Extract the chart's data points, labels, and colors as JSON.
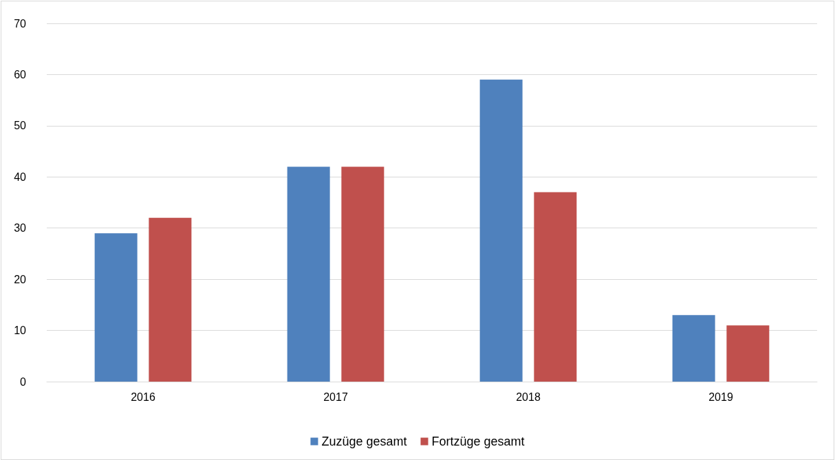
{
  "chart_data": {
    "type": "bar",
    "categories": [
      "2016",
      "2017",
      "2018",
      "2019"
    ],
    "series": [
      {
        "name": "Zuzüge gesamt",
        "color": "#4f81bd",
        "values": [
          29,
          42,
          59,
          13
        ]
      },
      {
        "name": "Fortzüge gesamt",
        "color": "#c0504d",
        "values": [
          32,
          42,
          37,
          11
        ]
      }
    ],
    "ylim": [
      0,
      70
    ],
    "yticks": [
      0,
      10,
      20,
      30,
      40,
      50,
      60,
      70
    ],
    "grid": "y",
    "legend": "bottom"
  }
}
